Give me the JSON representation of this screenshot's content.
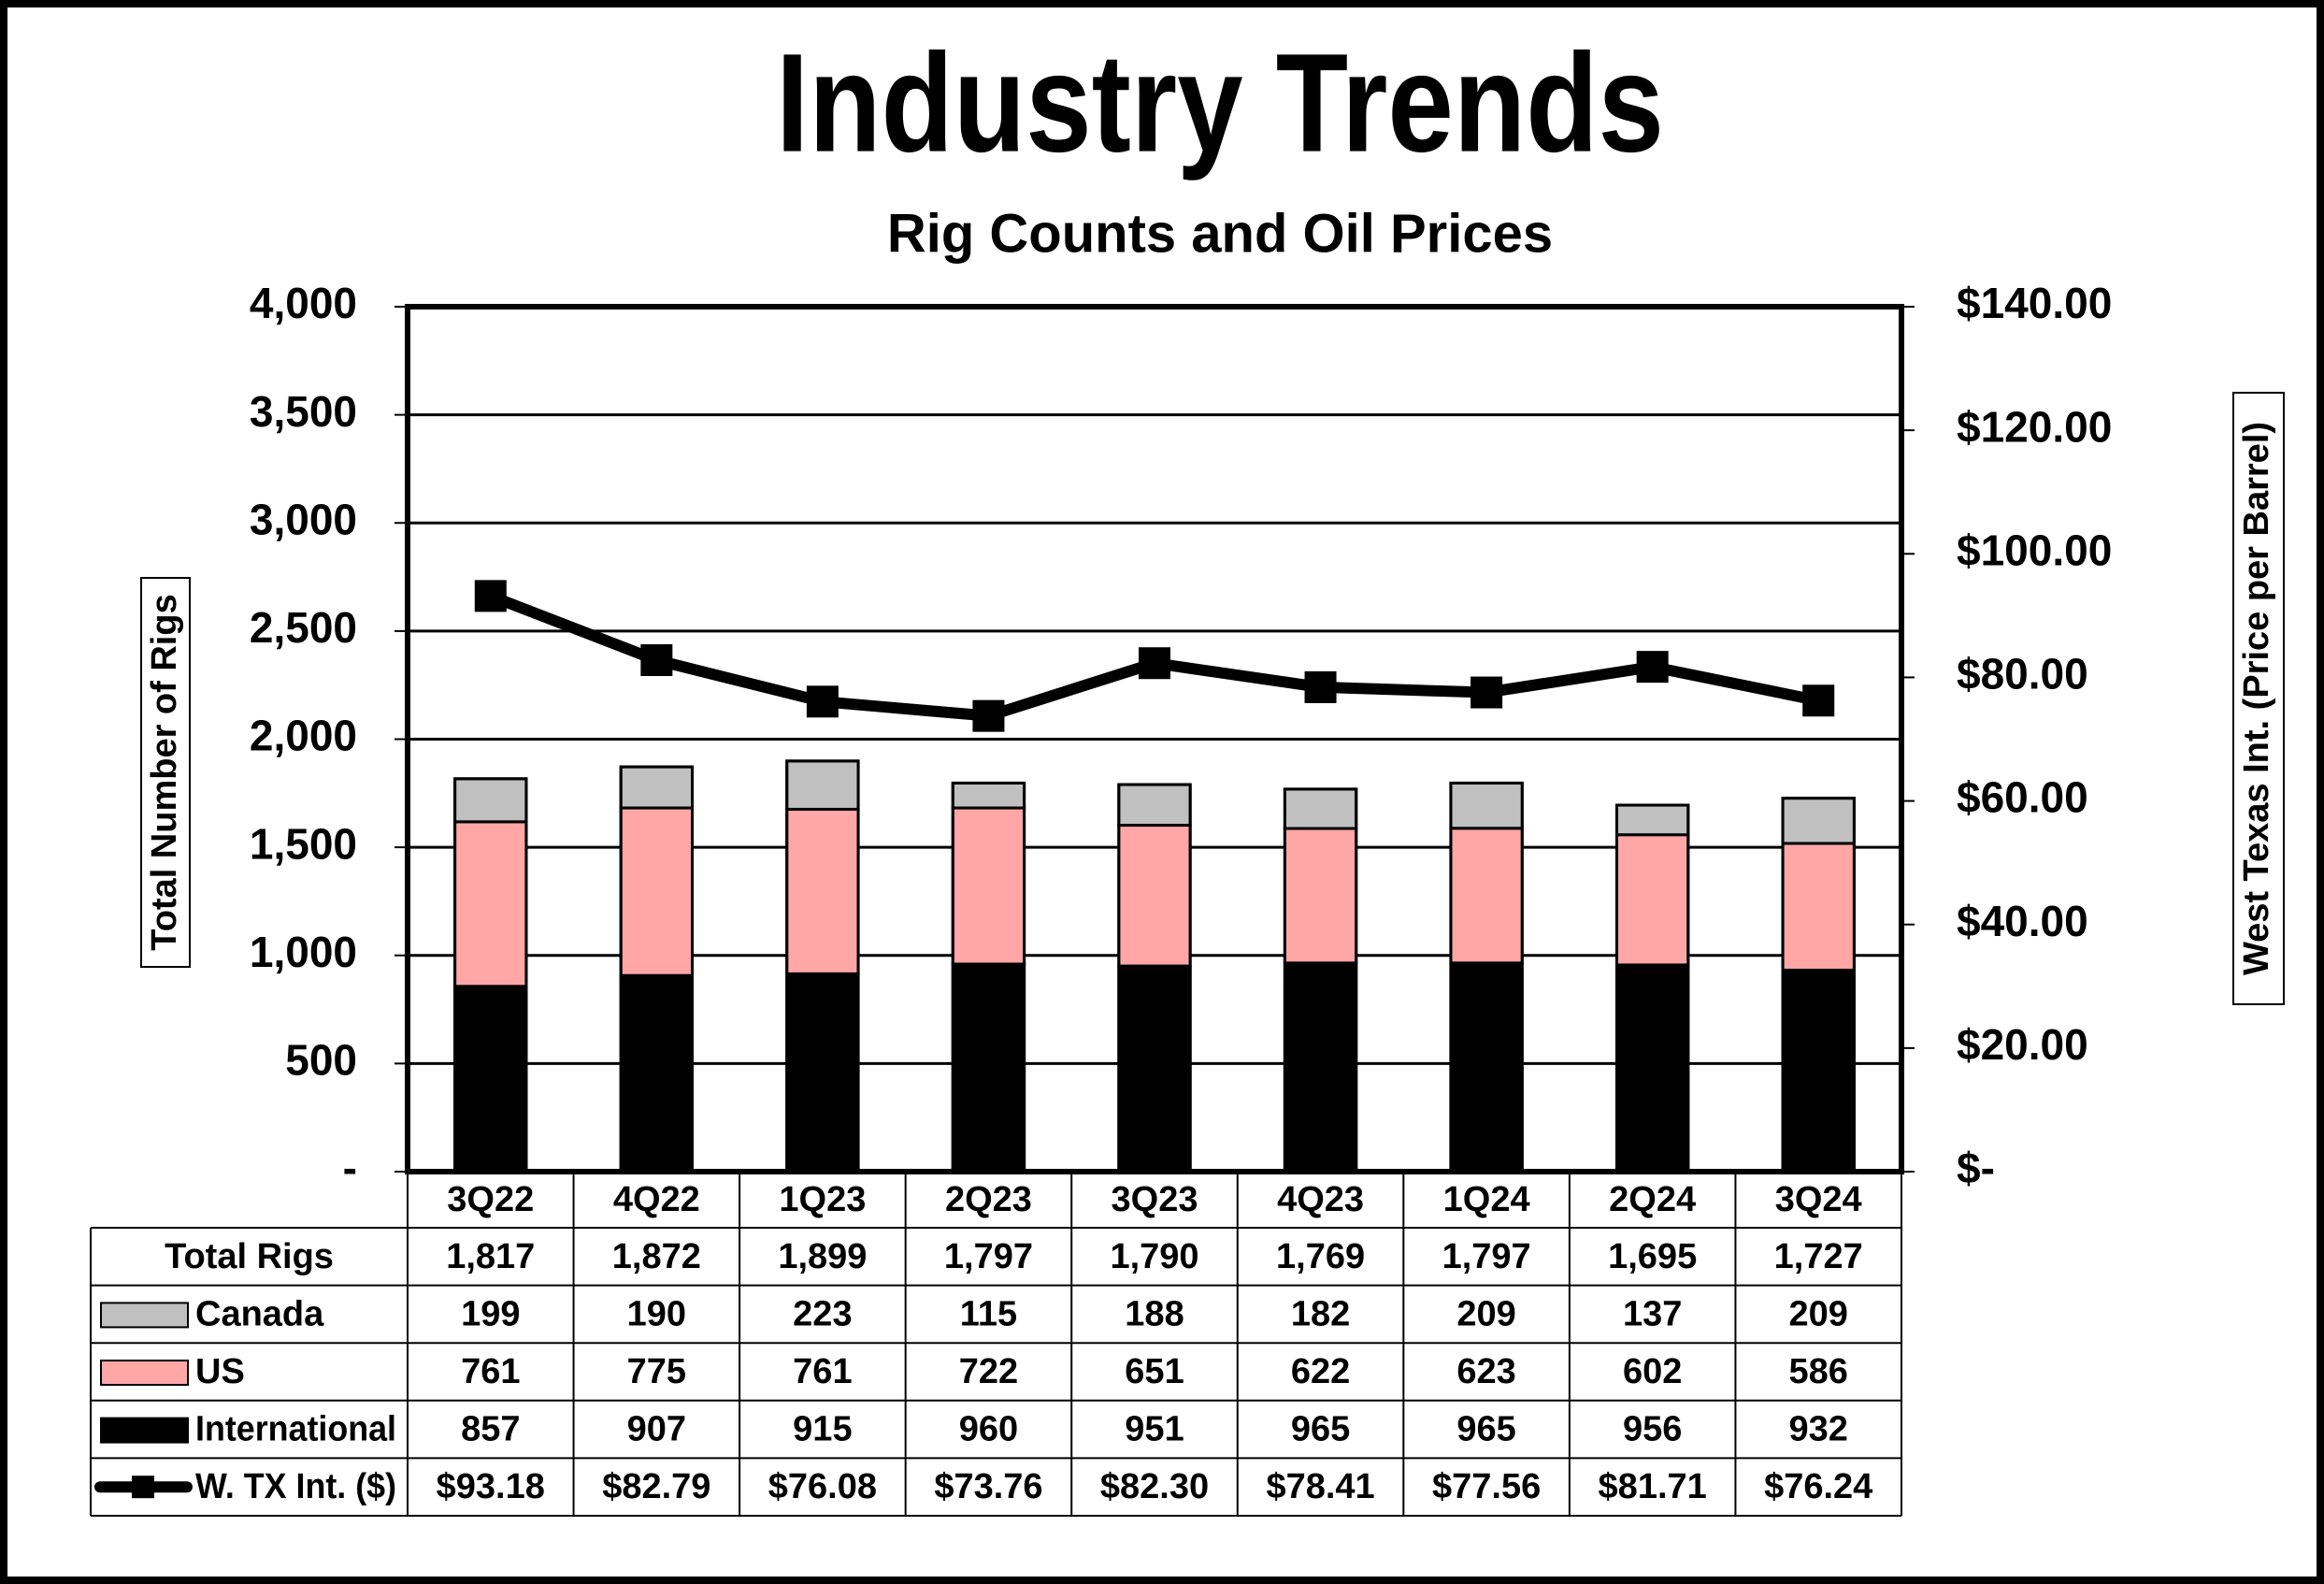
{
  "chart_data": {
    "type": "bar",
    "stacked": true,
    "title": "Industry Trends",
    "subtitle": "Rig Counts and Oil Prices",
    "y_label": "Total Number of Rigs",
    "y2_label": "West Texas Int. (Price per Barrel)",
    "categories": [
      "3Q22",
      "4Q22",
      "1Q23",
      "2Q23",
      "3Q23",
      "4Q23",
      "1Q24",
      "2Q24",
      "3Q24"
    ],
    "total": {
      "name": "Total Rigs",
      "values": [
        1817,
        1872,
        1899,
        1797,
        1790,
        1769,
        1797,
        1695,
        1727
      ],
      "value_labels": [
        "1,817",
        "1,872",
        "1,899",
        "1,797",
        "1,790",
        "1,769",
        "1,797",
        "1,695",
        "1,727"
      ]
    },
    "series": [
      {
        "name": "Canada",
        "type": "bar",
        "color": "#c0c0c0",
        "values": [
          199,
          190,
          223,
          115,
          188,
          182,
          209,
          137,
          209
        ]
      },
      {
        "name": "US",
        "type": "bar",
        "color": "#ffa6a6",
        "values": [
          761,
          775,
          761,
          722,
          651,
          622,
          623,
          602,
          586
        ]
      },
      {
        "name": "International",
        "type": "bar",
        "color": "#000000",
        "values": [
          857,
          907,
          915,
          960,
          951,
          965,
          965,
          956,
          932
        ]
      },
      {
        "name": "W. TX Int. ($)",
        "type": "line",
        "axis": "y2",
        "color": "#000000",
        "values": [
          93.18,
          82.79,
          76.08,
          73.76,
          82.3,
          78.41,
          77.56,
          81.71,
          76.24
        ],
        "value_labels": [
          "$93.18",
          "$82.79",
          "$76.08",
          "$73.76",
          "$82.30",
          "$78.41",
          "$77.56",
          "$81.71",
          "$76.24"
        ]
      }
    ],
    "ylim": [
      0,
      4000
    ],
    "yticks": [
      {
        "value": 0,
        "label": "-"
      },
      500,
      {
        "value": 1000,
        "label": "1,000"
      },
      {
        "value": 1500,
        "label": "1,500"
      },
      {
        "value": 2000,
        "label": "2,000"
      },
      {
        "value": 2500,
        "label": "2,500"
      },
      {
        "value": 3000,
        "label": "3,000"
      },
      {
        "value": 3500,
        "label": "3,500"
      },
      {
        "value": 4000,
        "label": "4,000"
      }
    ],
    "y2lim": [
      0,
      140
    ],
    "y2ticks": [
      {
        "value": 0,
        "label": "$-"
      },
      {
        "value": 20,
        "label": "$20.00"
      },
      {
        "value": 40,
        "label": "$40.00"
      },
      {
        "value": 60,
        "label": "$60.00"
      },
      {
        "value": 80,
        "label": "$80.00"
      },
      {
        "value": 100,
        "label": "$100.00"
      },
      {
        "value": 120,
        "label": "$120.00"
      },
      {
        "value": 140,
        "label": "$140.00"
      }
    ],
    "grid": true
  }
}
